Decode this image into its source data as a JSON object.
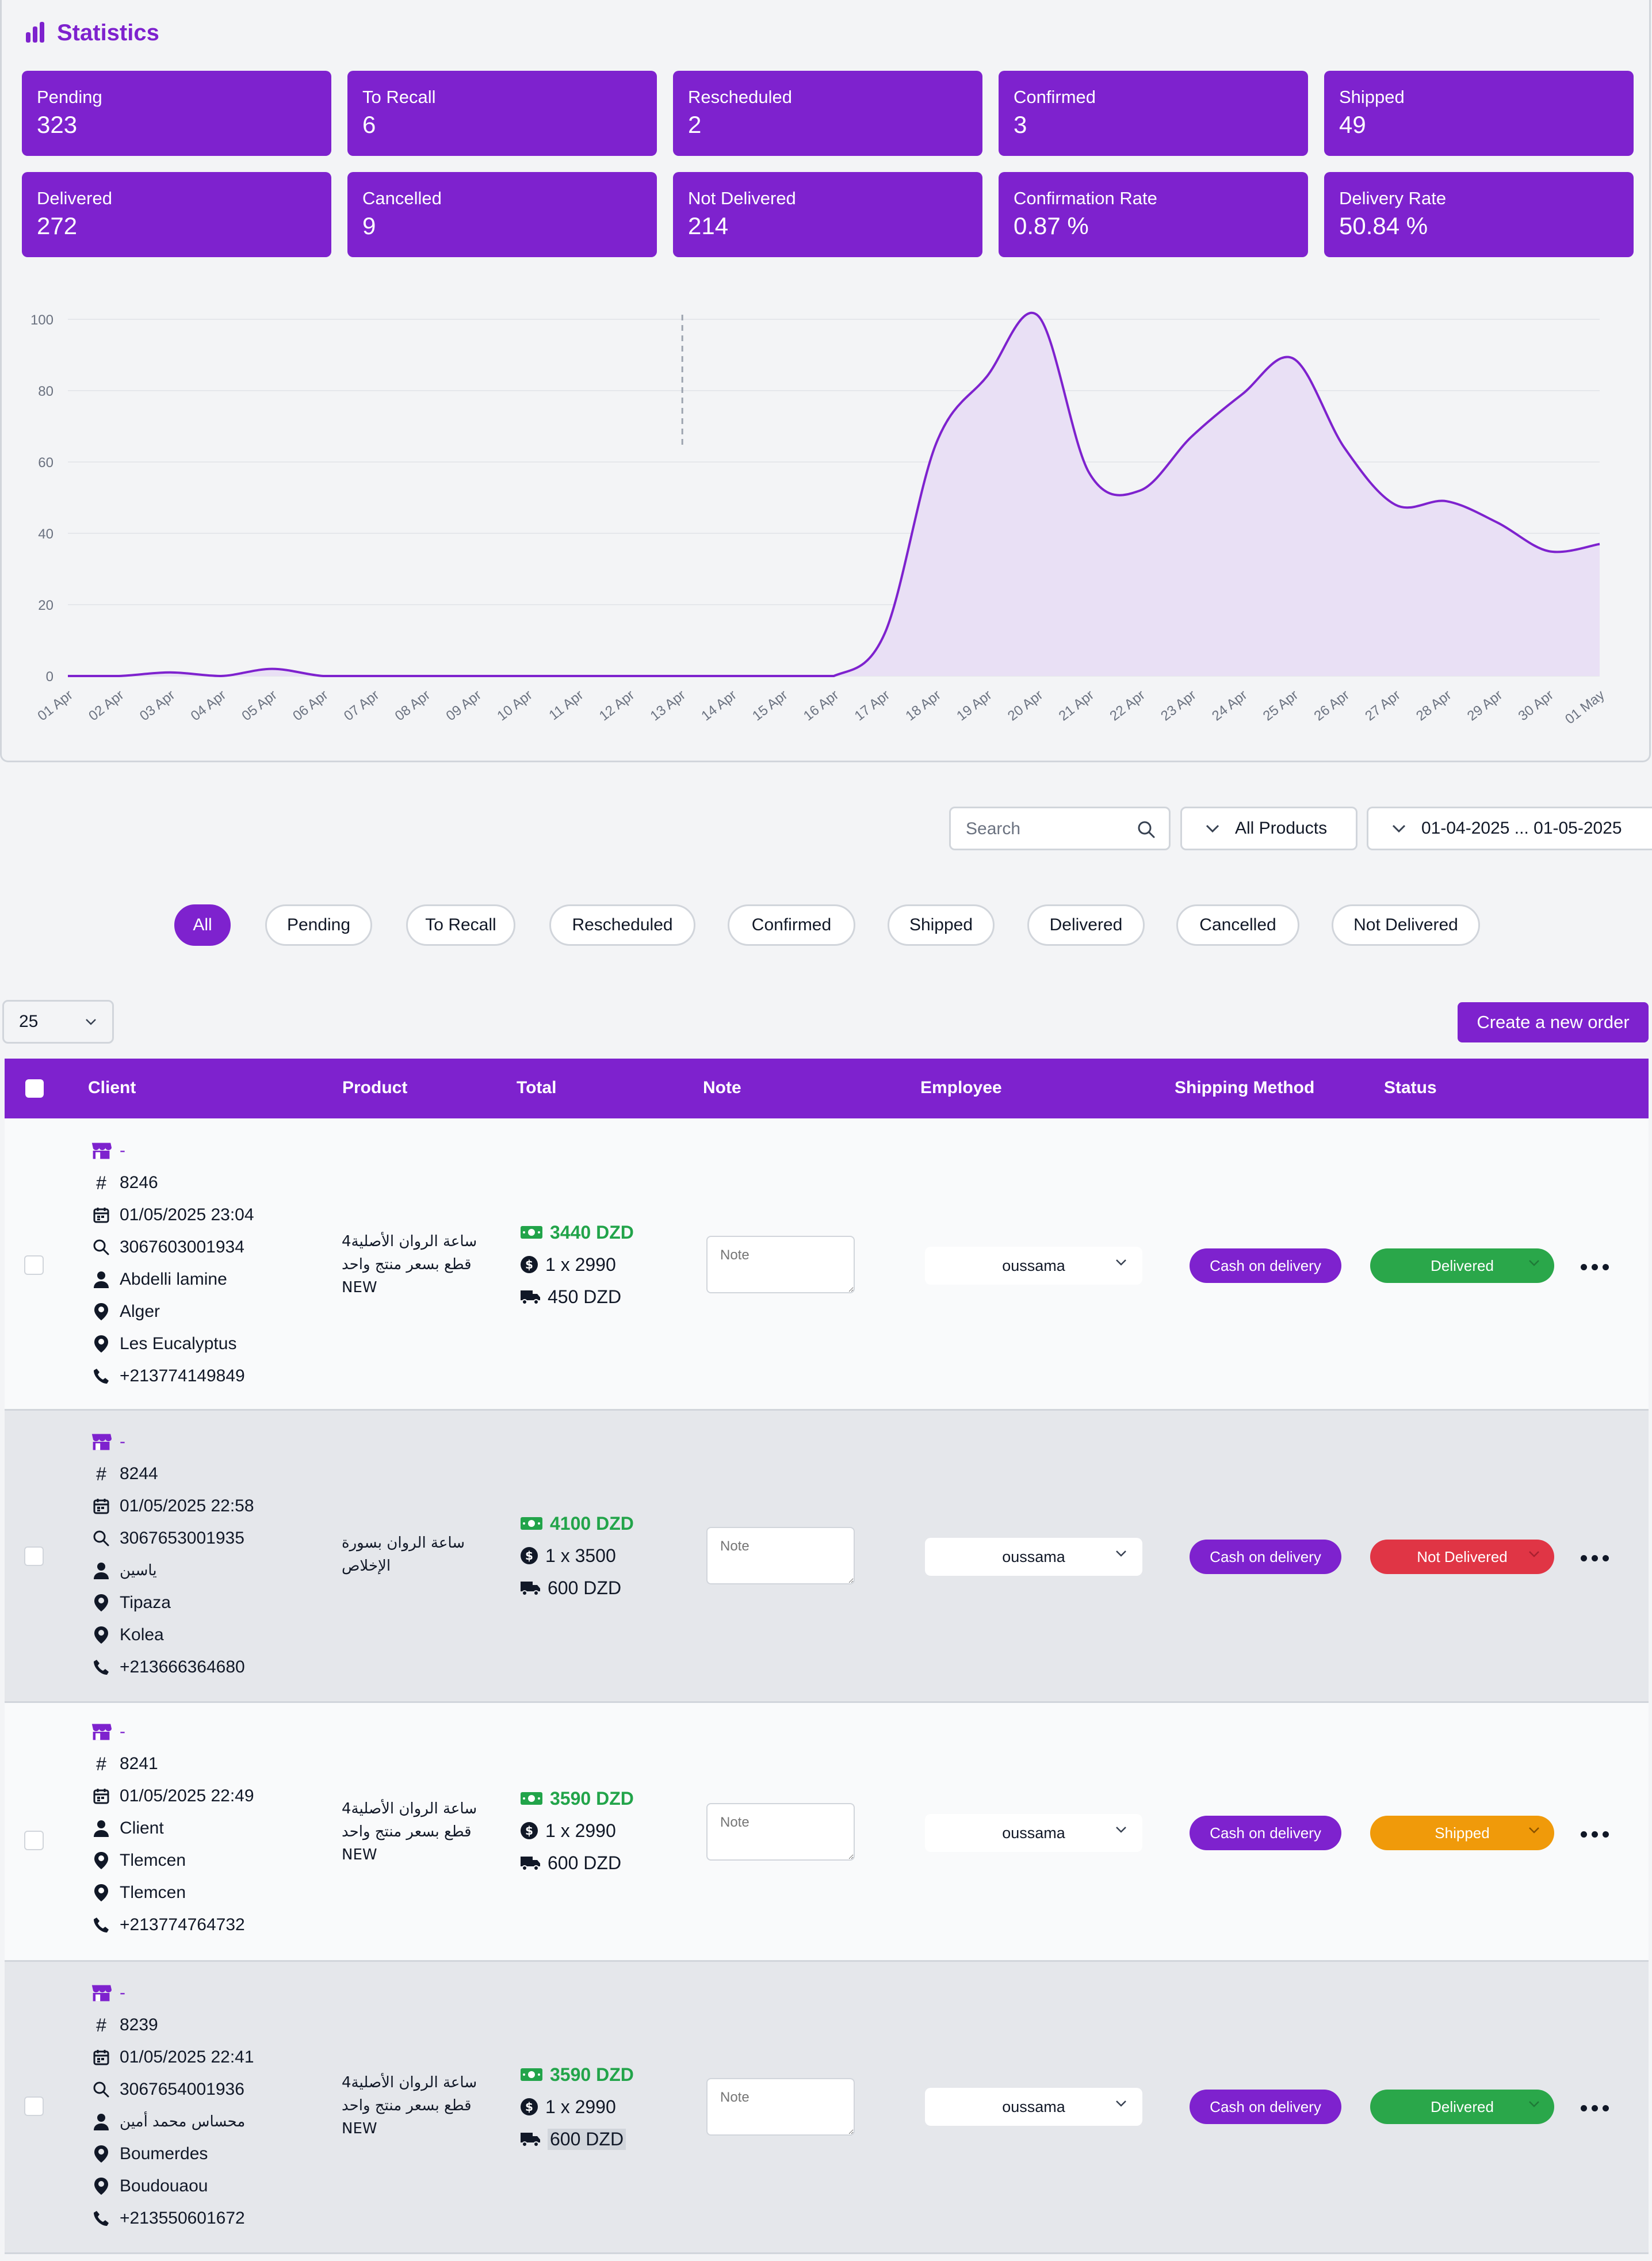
{
  "stats": {
    "title": "Statistics",
    "cards": [
      {
        "label": "Pending",
        "value": "323"
      },
      {
        "label": "To Recall",
        "value": "6"
      },
      {
        "label": "Rescheduled",
        "value": "2"
      },
      {
        "label": "Confirmed",
        "value": "3"
      },
      {
        "label": "Shipped",
        "value": "49"
      },
      {
        "label": "Delivered",
        "value": "272"
      },
      {
        "label": "Cancelled",
        "value": "9"
      },
      {
        "label": "Not Delivered",
        "value": "214"
      },
      {
        "label": "Confirmation Rate",
        "value": "0.87 %"
      },
      {
        "label": "Delivery Rate",
        "value": "50.84 %"
      }
    ]
  },
  "chart_data": {
    "type": "area",
    "x": [
      "01 Apr",
      "02 Apr",
      "03 Apr",
      "04 Apr",
      "05 Apr",
      "06 Apr",
      "07 Apr",
      "08 Apr",
      "09 Apr",
      "10 Apr",
      "11 Apr",
      "12 Apr",
      "13 Apr",
      "14 Apr",
      "15 Apr",
      "16 Apr",
      "17 Apr",
      "18 Apr",
      "19 Apr",
      "20 Apr",
      "21 Apr",
      "22 Apr",
      "23 Apr",
      "24 Apr",
      "25 Apr",
      "26 Apr",
      "27 Apr",
      "28 Apr",
      "29 Apr",
      "30 Apr",
      "01 May"
    ],
    "series": [
      {
        "values": [
          0,
          0,
          1,
          0,
          2,
          0,
          0,
          0,
          0,
          0,
          0,
          0,
          0,
          0,
          0,
          0,
          12,
          65,
          84,
          101,
          57,
          52,
          67,
          79,
          89,
          64,
          48,
          49,
          43,
          35,
          37
        ]
      }
    ],
    "yticks": [
      0,
      20,
      40,
      60,
      80,
      100
    ],
    "ylim": [
      0,
      100
    ],
    "grid": true,
    "colors": {
      "line": "#7e22ce",
      "fill": "#e9e0f5"
    }
  },
  "filters": {
    "search_placeholder": "Search",
    "product_select": "All Products",
    "date_range": "01-04-2025 ... 01-05-2025",
    "status_tabs": [
      "All",
      "Pending",
      "To Recall",
      "Rescheduled",
      "Confirmed",
      "Shipped",
      "Delivered",
      "Cancelled",
      "Not Delivered"
    ],
    "active_tab": "All",
    "per_page": "25",
    "create_button": "Create a new order"
  },
  "table": {
    "columns": [
      "Client",
      "Product",
      "Total",
      "Note",
      "Employee",
      "Shipping Method",
      "Status"
    ],
    "note_placeholder": "Note",
    "rows": [
      {
        "store": "-",
        "id": "8246",
        "date": "01/05/2025 23:04",
        "tracking": "3067603001934",
        "client": "Abdelli lamine",
        "wilaya": "Alger",
        "commune": "Les Eucalyptus",
        "phone": "+213774149849",
        "product_lines": [
          "ساعة الروان الأصلية4",
          "قطع بسعر منتج واحد",
          "NEW"
        ],
        "total": "3440 DZD",
        "qty": "1 x 2990",
        "delivery": "450 DZD",
        "employee": "oussama",
        "shipping": "Cash on delivery",
        "status": "Delivered"
      },
      {
        "store": "-",
        "id": "8244",
        "date": "01/05/2025 22:58",
        "tracking": "3067653001935",
        "client": "ياسين",
        "wilaya": "Tipaza",
        "commune": "Kolea",
        "phone": "+213666364680",
        "product_lines": [
          "ساعة الروان بسورة",
          "الإخلاص"
        ],
        "total": "4100 DZD",
        "qty": "1 x 3500",
        "delivery": "600 DZD",
        "employee": "oussama",
        "shipping": "Cash on delivery",
        "status": "Not Delivered"
      },
      {
        "store": "-",
        "id": "8241",
        "date": "01/05/2025 22:49",
        "client": "Client",
        "wilaya": "Tlemcen",
        "commune": "Tlemcen",
        "phone": "+213774764732",
        "product_lines": [
          "ساعة الروان الأصلية4",
          "قطع بسعر منتج واحد",
          "NEW"
        ],
        "total": "3590 DZD",
        "qty": "1 x 2990",
        "delivery": "600 DZD",
        "employee": "oussama",
        "shipping": "Cash on delivery",
        "status": "Shipped"
      },
      {
        "store": "-",
        "id": "8239",
        "date": "01/05/2025 22:41",
        "tracking": "3067654001936",
        "client": "محساس محمد أمين",
        "wilaya": "Boumerdes",
        "commune": "Boudouaou",
        "phone": "+213550601672",
        "product_lines": [
          "ساعة الروان الأصلية4",
          "قطع بسعر منتج واحد",
          "NEW"
        ],
        "total": "3590 DZD",
        "qty": "1 x 2990",
        "delivery": "600 DZD",
        "employee": "oussama",
        "shipping": "Cash on delivery",
        "status": "Delivered"
      }
    ],
    "status_colors": {
      "Delivered": "#2aa74a",
      "Not Delivered": "#e03545",
      "Shipped": "#f09a0a"
    }
  }
}
